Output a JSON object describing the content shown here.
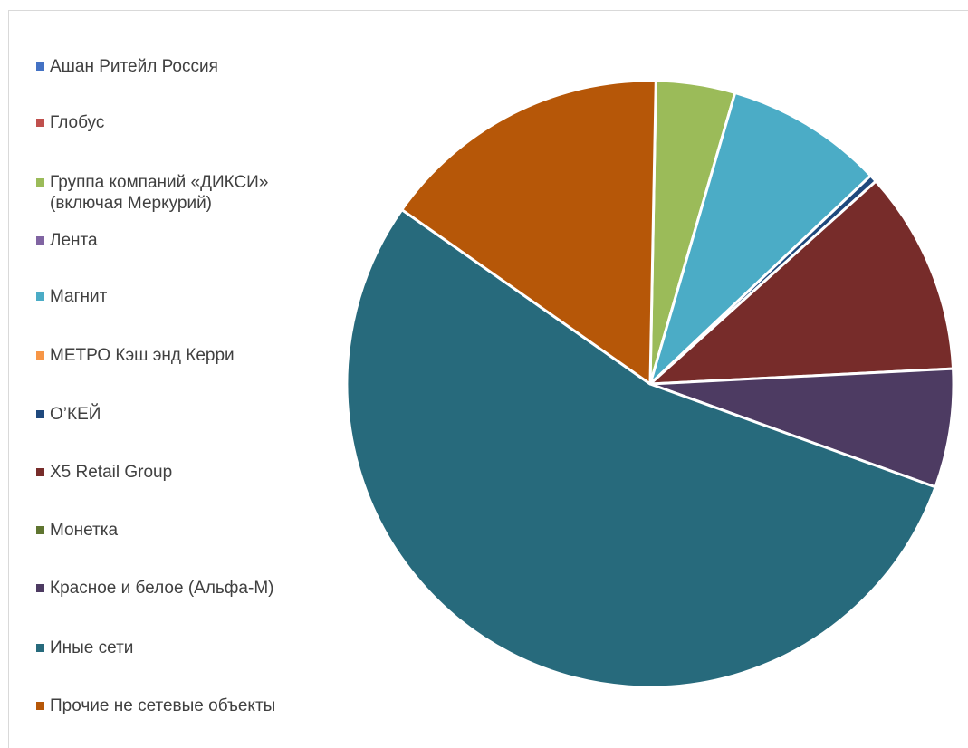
{
  "chart_data": {
    "type": "pie",
    "title": "",
    "legend_position": "left",
    "slices": [
      {
        "label": "Ашан Ритейл Россия",
        "value": 0.0,
        "color": "#4472c4"
      },
      {
        "label": "Глобус",
        "value": 0.0,
        "color": "#c0504d"
      },
      {
        "label": "Группа компаний «ДИКСИ»\n(включая Меркурий)",
        "value": 4.2,
        "color": "#9bbb59"
      },
      {
        "label": "Лента",
        "value": 0.0,
        "color": "#8064a2"
      },
      {
        "label": "Магнит",
        "value": 8.4,
        "color": "#4bacc6"
      },
      {
        "label": "МЕТРО Кэш энд Керри",
        "value": 0.0,
        "color": "#f79646"
      },
      {
        "label": "О’КЕЙ",
        "value": 0.4,
        "color": "#1f497d"
      },
      {
        "label": "X5 Retail Group",
        "value": 10.8,
        "color": "#772c2a"
      },
      {
        "label": "Монетка",
        "value": 0.0,
        "color": "#5f7530"
      },
      {
        "label": "Красное и белое (Альфа-М)",
        "value": 6.3,
        "color": "#4d3b62"
      },
      {
        "label": "Иные  сети",
        "value": 54.0,
        "color": "#276a7c"
      },
      {
        "label": "Прочие не сетевые объекты",
        "value": 15.5,
        "color": "#b65708"
      }
    ]
  }
}
